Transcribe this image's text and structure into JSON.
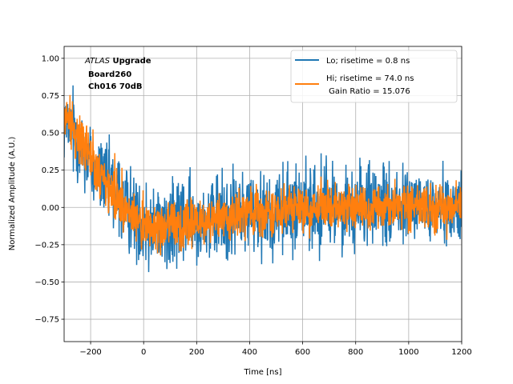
{
  "chart_data": {
    "type": "line",
    "xlabel": "Time [ns]",
    "ylabel": "Normalized Amplitude (A.U.)",
    "xlim": [
      -300,
      1200
    ],
    "ylim": [
      -0.9,
      1.08
    ],
    "xticks": [
      -200,
      0,
      200,
      400,
      600,
      800,
      1000,
      1200
    ],
    "xtick_labels": [
      "−200",
      "0",
      "200",
      "400",
      "600",
      "800",
      "1000",
      "1200"
    ],
    "yticks": [
      -0.75,
      -0.5,
      -0.25,
      0.0,
      0.25,
      0.5,
      0.75,
      1.0
    ],
    "ytick_labels": [
      "−0.75",
      "−0.50",
      "−0.25",
      "0.00",
      "0.25",
      "0.50",
      "0.75",
      "1.00"
    ],
    "grid": true,
    "legend_position": "top-right",
    "annotation": {
      "atlas": "ATLAS",
      "upgrade": " Upgrade",
      "board": "Board260",
      "channel": "Ch016 70dB"
    },
    "series": [
      {
        "name": "Lo; risetime = 0.8 ns",
        "color": "#1f77b4",
        "envelope": {
          "x": [
            -300,
            -260,
            -220,
            -180,
            -140,
            -100,
            -60,
            -20,
            0,
            50,
            100,
            200,
            300,
            400,
            500,
            600,
            700,
            800,
            900,
            1000,
            1100,
            1200
          ],
          "center": [
            0.55,
            0.5,
            0.38,
            0.25,
            0.15,
            0.07,
            0.0,
            -0.06,
            -0.1,
            -0.12,
            -0.12,
            -0.09,
            -0.06,
            -0.03,
            -0.01,
            0.0,
            0.0,
            0.0,
            0.0,
            0.0,
            0.0,
            0.0
          ],
          "spread": [
            0.35,
            0.4,
            0.42,
            0.42,
            0.42,
            0.42,
            0.42,
            0.42,
            0.42,
            0.45,
            0.45,
            0.42,
            0.42,
            0.42,
            0.42,
            0.42,
            0.42,
            0.4,
            0.4,
            0.38,
            0.35,
            0.32
          ]
        }
      },
      {
        "name": "Hi; risetime = 74.0 ns",
        "name_line2": " Gain Ratio = 15.076",
        "color": "#ff7f0e",
        "envelope": {
          "x": [
            -300,
            -260,
            -220,
            -180,
            -140,
            -100,
            -60,
            -20,
            0,
            50,
            100,
            200,
            300,
            400,
            500,
            600,
            700,
            800,
            900,
            1000,
            1100,
            1200
          ],
          "center": [
            0.6,
            0.55,
            0.4,
            0.25,
            0.13,
            0.05,
            -0.02,
            -0.08,
            -0.12,
            -0.13,
            -0.13,
            -0.1,
            -0.07,
            -0.04,
            -0.02,
            -0.01,
            0.0,
            0.0,
            0.0,
            0.0,
            0.0,
            0.0
          ],
          "spread": [
            0.25,
            0.28,
            0.28,
            0.26,
            0.25,
            0.24,
            0.24,
            0.24,
            0.25,
            0.26,
            0.26,
            0.24,
            0.22,
            0.22,
            0.22,
            0.22,
            0.22,
            0.22,
            0.22,
            0.22,
            0.22,
            0.22
          ]
        }
      }
    ]
  }
}
